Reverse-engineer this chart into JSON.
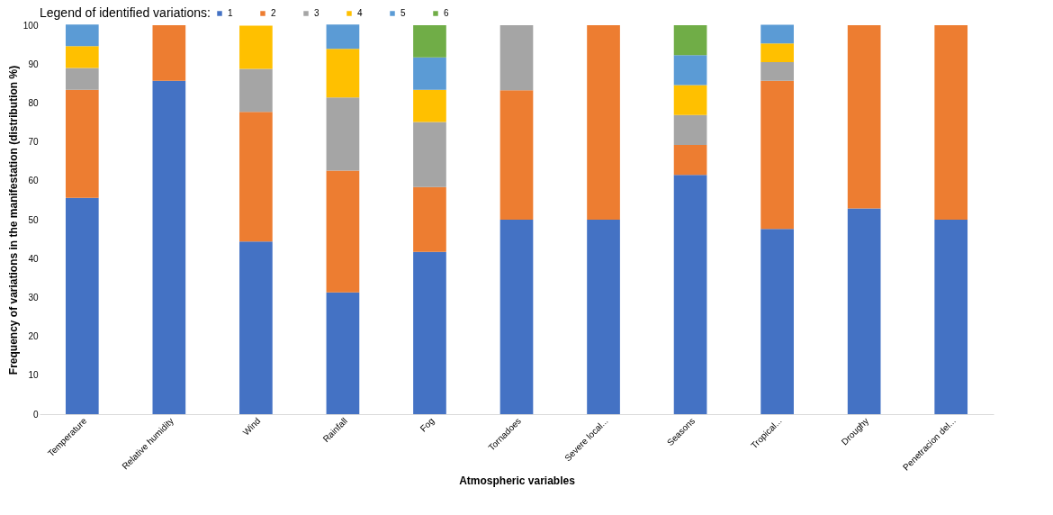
{
  "chart_data": {
    "type": "bar",
    "stacked": true,
    "xlabel": "Atmospheric variables",
    "ylabel": "Frequency of variations in the manifestation (distribution %)",
    "legend_title": "Legend of identified variations:",
    "legend": "top",
    "categories": [
      "Temperature",
      "Relative humidity",
      "Wind",
      "Rainfall",
      "Fog",
      "Tornadoes",
      "Severe local...",
      "Seasons",
      "Tropical...",
      "Droughy",
      "Penetracion del..."
    ],
    "ylim": [
      0,
      100
    ],
    "yticks": [
      0,
      10,
      20,
      30,
      40,
      50,
      60,
      70,
      80,
      90,
      100
    ],
    "series": [
      {
        "name": "1",
        "color": "#4472c4",
        "values": [
          55.6,
          85.7,
          44.4,
          31.3,
          41.7,
          50,
          50,
          61.5,
          47.6,
          52.9,
          50
        ]
      },
      {
        "name": "2",
        "color": "#ed7d31",
        "values": [
          27.8,
          14.3,
          33.3,
          31.3,
          16.7,
          33.3,
          50,
          7.7,
          38.1,
          47.1,
          50
        ]
      },
      {
        "name": "3",
        "color": "#a5a5a5",
        "values": [
          5.6,
          null,
          11.1,
          18.8,
          16.7,
          16.7,
          null,
          7.7,
          4.8,
          null,
          null
        ]
      },
      {
        "name": "4",
        "color": "#ffc000",
        "values": [
          5.6,
          null,
          11.1,
          12.5,
          8.3,
          null,
          null,
          7.7,
          4.8,
          null,
          null
        ]
      },
      {
        "name": "5",
        "color": "#5b9bd5",
        "values": [
          5.6,
          null,
          null,
          6.3,
          8.3,
          null,
          null,
          7.7,
          4.8,
          null,
          null
        ]
      },
      {
        "name": "6",
        "color": "#70ad47",
        "values": [
          null,
          null,
          null,
          null,
          8.3,
          null,
          null,
          7.7,
          null,
          null,
          null
        ]
      }
    ]
  }
}
